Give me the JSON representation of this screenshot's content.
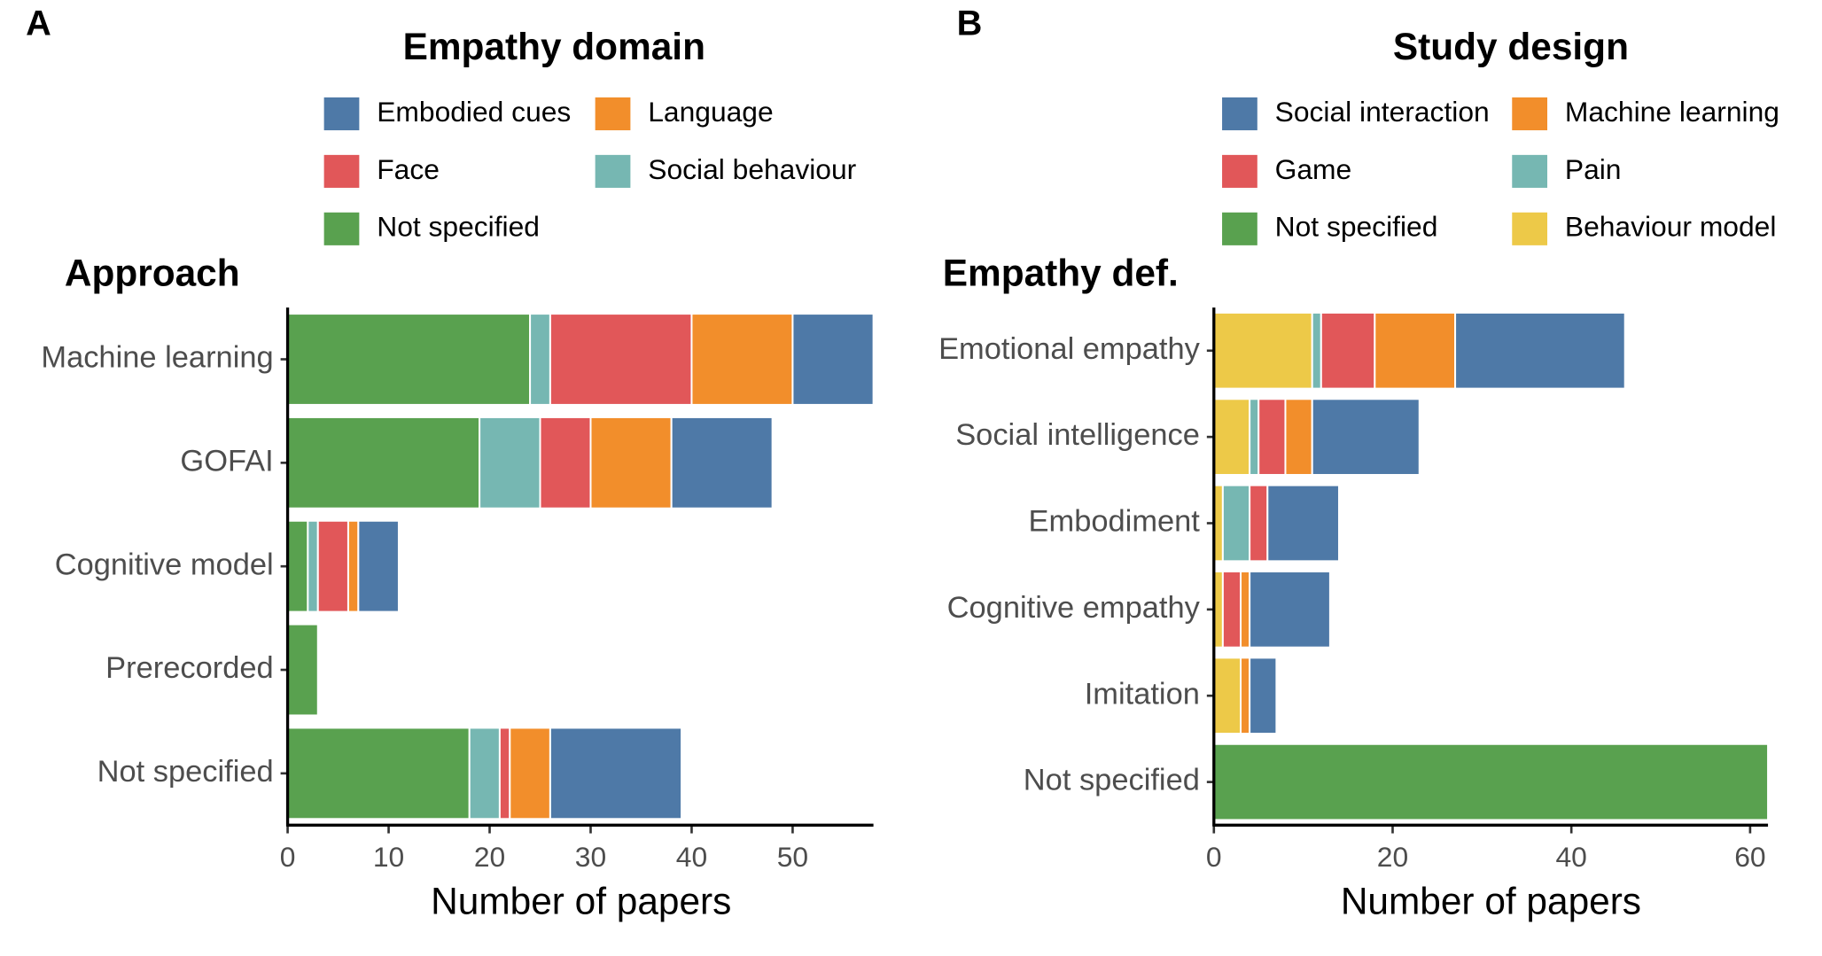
{
  "chart_data": [
    {
      "type": "bar",
      "panel_label": "A",
      "legend_title": "Empathy domain",
      "y_label": "Approach",
      "x_label": "Number of papers",
      "categories": [
        "Machine learning",
        "GOFAI",
        "Cognitive model",
        "Prerecorded",
        "Not specified"
      ],
      "series": [
        {
          "name": "Not specified",
          "color": "#59a14f",
          "values": [
            24,
            19,
            2,
            3,
            18
          ]
        },
        {
          "name": "Social behaviour",
          "color": "#76b7b2",
          "values": [
            2,
            6,
            1,
            0,
            3
          ]
        },
        {
          "name": "Face",
          "color": "#e15759",
          "values": [
            14,
            5,
            3,
            0,
            1
          ]
        },
        {
          "name": "Language",
          "color": "#f28e2b",
          "values": [
            10,
            8,
            1,
            0,
            4
          ]
        },
        {
          "name": "Embodied cues",
          "color": "#4e79a7",
          "values": [
            8,
            10,
            4,
            0,
            13
          ]
        }
      ],
      "xlim": [
        0,
        58
      ],
      "xticks": [
        0,
        10,
        20,
        30,
        40,
        50
      ]
    },
    {
      "type": "bar",
      "panel_label": "B",
      "legend_title": "Study design",
      "y_label": "Empathy def.",
      "x_label": "Number of papers",
      "categories": [
        "Emotional empathy",
        "Social intelligence",
        "Embodiment",
        "Cognitive empathy",
        "Imitation",
        "Not specified"
      ],
      "series": [
        {
          "name": "Behaviour model",
          "color": "#edc948",
          "values": [
            11,
            4,
            1,
            1,
            3,
            0
          ]
        },
        {
          "name": "Pain",
          "color": "#76b7b2",
          "values": [
            1,
            1,
            3,
            0,
            0,
            0
          ]
        },
        {
          "name": "Game",
          "color": "#e15759",
          "values": [
            6,
            3,
            2,
            2,
            0,
            0
          ]
        },
        {
          "name": "Machine learning",
          "color": "#f28e2b",
          "values": [
            9,
            3,
            0,
            1,
            1,
            0
          ]
        },
        {
          "name": "Social interaction",
          "color": "#4e79a7",
          "values": [
            19,
            12,
            8,
            9,
            3,
            0
          ]
        },
        {
          "name": "Not specified",
          "color": "#59a14f",
          "values": [
            0,
            0,
            0,
            0,
            0,
            62
          ]
        }
      ],
      "xlim": [
        0,
        62
      ],
      "xticks": [
        0,
        20,
        40,
        60
      ]
    }
  ]
}
